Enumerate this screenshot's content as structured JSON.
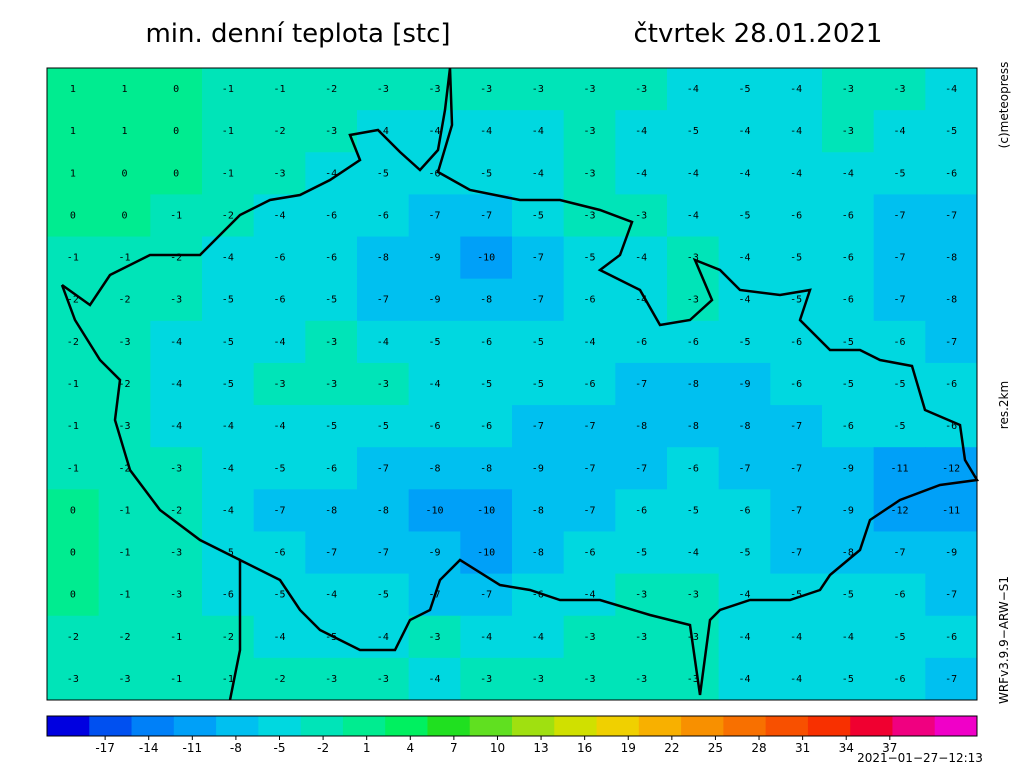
{
  "header": {
    "title": "min. denní teplota [stc]",
    "date": "čtvrtek 28.01.2021"
  },
  "side_labels": {
    "copyright": "(c)meteopress",
    "resolution": "res.2km",
    "model": "WRFv3.9.9−ARW−S1"
  },
  "timestamp": "2021−01−27−12:13",
  "map": {
    "grid": [
      [
        1,
        1,
        0,
        -1,
        -1,
        -2,
        -3,
        -3,
        -3,
        -3,
        -3,
        -3,
        -4,
        -5,
        -4,
        -3,
        -3,
        -4
      ],
      [
        1,
        1,
        0,
        -1,
        -2,
        -3,
        -4,
        -4,
        -4,
        -4,
        -3,
        -4,
        -5,
        -4,
        -4,
        -3,
        -4,
        -5
      ],
      [
        1,
        0,
        0,
        -1,
        -3,
        -4,
        -5,
        -6,
        -5,
        -4,
        -3,
        -4,
        -4,
        -4,
        -4,
        -4,
        -5,
        -6
      ],
      [
        0,
        0,
        -1,
        -2,
        -4,
        -6,
        -6,
        -7,
        -7,
        -5,
        -3,
        -3,
        -4,
        -5,
        -6,
        -6,
        -7,
        -7
      ],
      [
        -1,
        -1,
        -2,
        -4,
        -6,
        -6,
        -8,
        -9,
        -10,
        -7,
        -5,
        -4,
        -3,
        -4,
        -5,
        -6,
        -7,
        -8
      ],
      [
        -2,
        -2,
        -3,
        -5,
        -6,
        -5,
        -7,
        -9,
        -8,
        -7,
        -6,
        -4,
        -3,
        -4,
        -5,
        -6,
        -7,
        -8
      ],
      [
        -2,
        -3,
        -4,
        -5,
        -4,
        -3,
        -4,
        -5,
        -6,
        -5,
        -4,
        -6,
        -6,
        -5,
        -6,
        -5,
        -6,
        -7
      ],
      [
        -1,
        -2,
        -4,
        -5,
        -3,
        -3,
        -3,
        -4,
        -5,
        -5,
        -6,
        -7,
        -8,
        -9,
        -6,
        -5,
        -5,
        -6
      ],
      [
        -1,
        -3,
        -4,
        -4,
        -4,
        -5,
        -5,
        -6,
        -6,
        -7,
        -7,
        -8,
        -8,
        -8,
        -7,
        -6,
        -5,
        -6
      ],
      [
        -1,
        -2,
        -3,
        -4,
        -5,
        -6,
        -7,
        -8,
        -8,
        -9,
        -7,
        -7,
        -6,
        -7,
        -7,
        -9,
        -11,
        -12
      ],
      [
        0,
        -1,
        -2,
        -4,
        -7,
        -8,
        -8,
        -10,
        -10,
        -8,
        -7,
        -6,
        -5,
        -6,
        -7,
        -9,
        -12,
        -11
      ],
      [
        0,
        -1,
        -3,
        -5,
        -6,
        -7,
        -7,
        -9,
        -10,
        -8,
        -6,
        -5,
        -4,
        -5,
        -7,
        -8,
        -7,
        -9
      ],
      [
        0,
        -1,
        -3,
        -6,
        -5,
        -4,
        -5,
        -7,
        -7,
        -6,
        -4,
        -3,
        -3,
        -4,
        -5,
        -5,
        -6,
        -7
      ],
      [
        -2,
        -2,
        -1,
        -2,
        -4,
        -5,
        -4,
        -3,
        -4,
        -4,
        -3,
        -3,
        -3,
        -4,
        -4,
        -4,
        -5,
        -6
      ],
      [
        -3,
        -3,
        -1,
        -1,
        -2,
        -3,
        -3,
        -4,
        -3,
        -3,
        -3,
        -3,
        -3,
        -4,
        -4,
        -5,
        -6,
        -7
      ]
    ]
  },
  "colorbar": {
    "range": [
      -21,
      43
    ],
    "ticks": [
      -17,
      -14,
      -11,
      -8,
      -5,
      -2,
      1,
      4,
      7,
      10,
      13,
      16,
      19,
      22,
      25,
      28,
      31,
      34,
      37
    ],
    "colors": [
      "#0000e0",
      "#0050f0",
      "#0080f8",
      "#00a0f8",
      "#00c0f0",
      "#00d8e0",
      "#00e4b8",
      "#00ec90",
      "#00f060",
      "#20e020",
      "#60e020",
      "#a0e010",
      "#d0e000",
      "#f0d000",
      "#f8b000",
      "#f89000",
      "#f87000",
      "#f85000",
      "#f83000",
      "#f00030",
      "#f00080",
      "#f000c8"
    ]
  }
}
